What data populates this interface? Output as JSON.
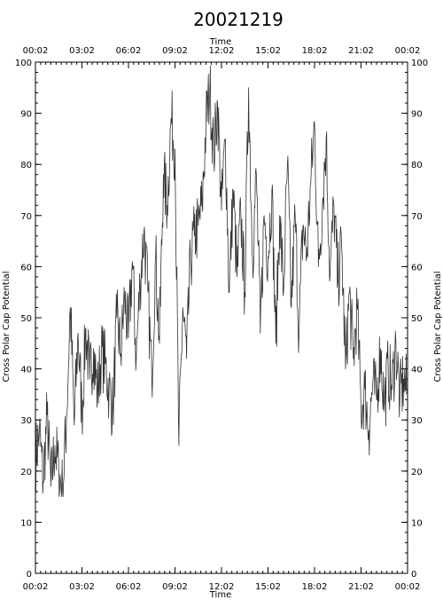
{
  "chart_data": {
    "type": "line",
    "title": "20021219",
    "xlabel": "Time",
    "ylabel": "Cross Polar Cap Potential",
    "x_unit": "hours",
    "xlim": [
      0,
      24
    ],
    "ylim": [
      0,
      100
    ],
    "x_ticks": [
      {
        "value": 0,
        "label": "00:02"
      },
      {
        "value": 3,
        "label": "03:02"
      },
      {
        "value": 6,
        "label": "06:02"
      },
      {
        "value": 9,
        "label": "09:02"
      },
      {
        "value": 12,
        "label": "12:02"
      },
      {
        "value": 15,
        "label": "15:02"
      },
      {
        "value": 18,
        "label": "18:02"
      },
      {
        "value": 21,
        "label": "21:02"
      },
      {
        "value": 24,
        "label": "00:02"
      }
    ],
    "y_ticks": [
      0,
      10,
      20,
      30,
      40,
      50,
      60,
      70,
      80,
      90,
      100
    ],
    "grid": false,
    "legend": "none",
    "series": [
      {
        "x": [
          0.0,
          0.25,
          0.5,
          0.75,
          1.0,
          1.25,
          1.5,
          1.75,
          2.0,
          2.25,
          2.5,
          2.75,
          3.0,
          3.25,
          3.5,
          3.75,
          4.0,
          4.25,
          4.5,
          4.75,
          5.0,
          5.25,
          5.5,
          5.75,
          6.0,
          6.25,
          6.5,
          6.75,
          7.0,
          7.25,
          7.5,
          7.75,
          8.0,
          8.25,
          8.5,
          8.75,
          9.0,
          9.25,
          9.5,
          9.75,
          10.0,
          10.25,
          10.5,
          10.75,
          11.0,
          11.25,
          11.5,
          11.75,
          12.0,
          12.25,
          12.5,
          12.75,
          13.0,
          13.25,
          13.5,
          13.75,
          14.0,
          14.25,
          14.5,
          14.75,
          15.0,
          15.25,
          15.5,
          15.75,
          16.0,
          16.25,
          16.5,
          16.75,
          17.0,
          17.25,
          17.5,
          17.75,
          18.0,
          18.25,
          18.5,
          18.75,
          19.0,
          19.25,
          19.5,
          19.75,
          20.0,
          20.25,
          20.5,
          20.75,
          21.0,
          21.25,
          21.5,
          21.75,
          22.0,
          22.25,
          22.5,
          22.75,
          23.0,
          23.25,
          23.5,
          23.75,
          24.0
        ],
        "y": [
          22,
          28,
          18,
          31,
          17,
          25,
          20,
          16,
          30,
          52,
          29,
          47,
          31,
          48,
          38,
          44,
          35,
          43,
          41,
          36,
          32,
          50,
          43,
          54,
          46,
          61,
          42,
          57,
          67,
          55,
          38,
          62,
          45,
          78,
          72,
          89,
          83,
          25,
          52,
          42,
          61,
          66,
          68,
          72,
          88,
          95,
          82,
          92,
          71,
          85,
          55,
          75,
          58,
          70,
          55,
          95,
          62,
          78,
          47,
          70,
          62,
          75,
          45,
          70,
          55,
          80,
          52,
          70,
          47,
          68,
          62,
          76,
          88,
          60,
          72,
          85,
          58,
          72,
          57,
          64,
          40,
          55,
          42,
          52,
          32,
          36,
          28,
          37,
          34,
          44,
          33,
          40,
          36,
          45,
          34,
          38,
          35
        ]
      }
    ]
  }
}
